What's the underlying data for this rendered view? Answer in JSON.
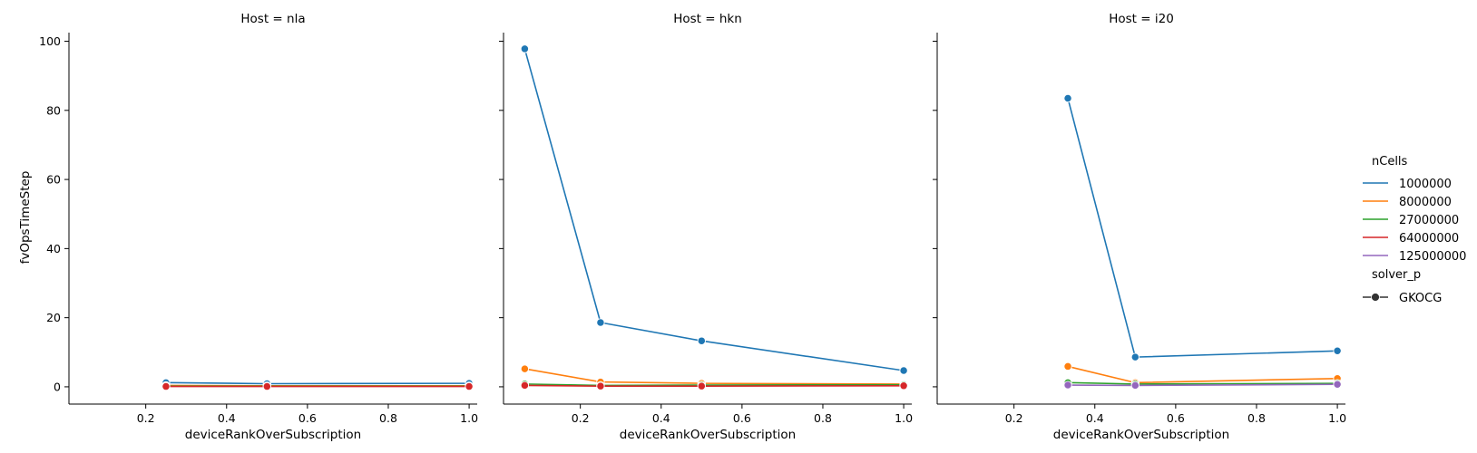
{
  "colors": {
    "1000000": "#1f77b4",
    "8000000": "#ff7f0e",
    "27000000": "#2ca02c",
    "64000000": "#d62728",
    "125000000": "#9467bd"
  },
  "legend": {
    "hue_title": "nCells",
    "hue_entries": [
      "1000000",
      "8000000",
      "27000000",
      "64000000",
      "125000000"
    ],
    "style_title": "solver_p",
    "style_entries": [
      "GKOCG"
    ]
  },
  "chart_data": [
    {
      "type": "line",
      "title": "Host = nla",
      "xlabel": "deviceRankOverSubscription",
      "ylabel": "fvOpsTimeStep",
      "xlim": [
        0.01,
        1.02
      ],
      "ylim": [
        -5,
        102.5
      ],
      "xticks": [
        "0.2",
        "0.4",
        "0.6",
        "0.8",
        "1.0"
      ],
      "yticks": [
        "0",
        "20",
        "40",
        "60",
        "80",
        "100"
      ],
      "series": [
        {
          "name": "1000000",
          "x": [
            0.25,
            0.5,
            1.0
          ],
          "values": [
            1.2,
            0.9,
            1.0
          ]
        },
        {
          "name": "8000000",
          "x": [
            0.25,
            0.5,
            1.0
          ],
          "values": [
            0.4,
            0.3,
            0.3
          ]
        },
        {
          "name": "27000000",
          "x": [
            0.25,
            0.5,
            1.0
          ],
          "values": [
            0.2,
            0.2,
            0.2
          ]
        },
        {
          "name": "64000000",
          "x": [
            0.25,
            0.5,
            1.0
          ],
          "values": [
            0.1,
            0.1,
            0.1
          ]
        }
      ]
    },
    {
      "type": "line",
      "title": "Host = hkn",
      "xlabel": "deviceRankOverSubscription",
      "ylabel": "",
      "xlim": [
        0.01,
        1.02
      ],
      "ylim": [
        -5,
        102.5
      ],
      "xticks": [
        "0.2",
        "0.4",
        "0.6",
        "0.8",
        "1.0"
      ],
      "yticks": [],
      "series": [
        {
          "name": "1000000",
          "x": [
            0.0625,
            0.25,
            0.5,
            1.0
          ],
          "values": [
            97.8,
            18.6,
            13.3,
            4.7
          ]
        },
        {
          "name": "8000000",
          "x": [
            0.0625,
            0.25,
            0.5,
            1.0
          ],
          "values": [
            5.2,
            1.4,
            1.0,
            0.8
          ]
        },
        {
          "name": "27000000",
          "x": [
            0.0625,
            0.25,
            0.5,
            1.0
          ],
          "values": [
            0.8,
            0.4,
            0.5,
            0.6
          ]
        },
        {
          "name": "64000000",
          "x": [
            0.0625,
            0.25,
            0.5,
            1.0
          ],
          "values": [
            0.4,
            0.2,
            0.2,
            0.3
          ]
        }
      ]
    },
    {
      "type": "line",
      "title": "Host = i20",
      "xlabel": "deviceRankOverSubscription",
      "ylabel": "",
      "xlim": [
        0.01,
        1.02
      ],
      "ylim": [
        -5,
        102.5
      ],
      "xticks": [
        "0.2",
        "0.4",
        "0.6",
        "0.8",
        "1.0"
      ],
      "yticks": [],
      "series": [
        {
          "name": "1000000",
          "x": [
            0.3333,
            0.5,
            1.0
          ],
          "values": [
            83.5,
            8.6,
            10.4
          ]
        },
        {
          "name": "8000000",
          "x": [
            0.3333,
            0.5,
            1.0
          ],
          "values": [
            5.9,
            1.2,
            2.4
          ]
        },
        {
          "name": "27000000",
          "x": [
            0.3333,
            0.5,
            1.0
          ],
          "values": [
            1.2,
            0.8,
            1.0
          ]
        },
        {
          "name": "125000000",
          "x": [
            0.3333,
            0.5,
            1.0
          ],
          "values": [
            0.5,
            0.4,
            0.7
          ]
        }
      ]
    }
  ]
}
